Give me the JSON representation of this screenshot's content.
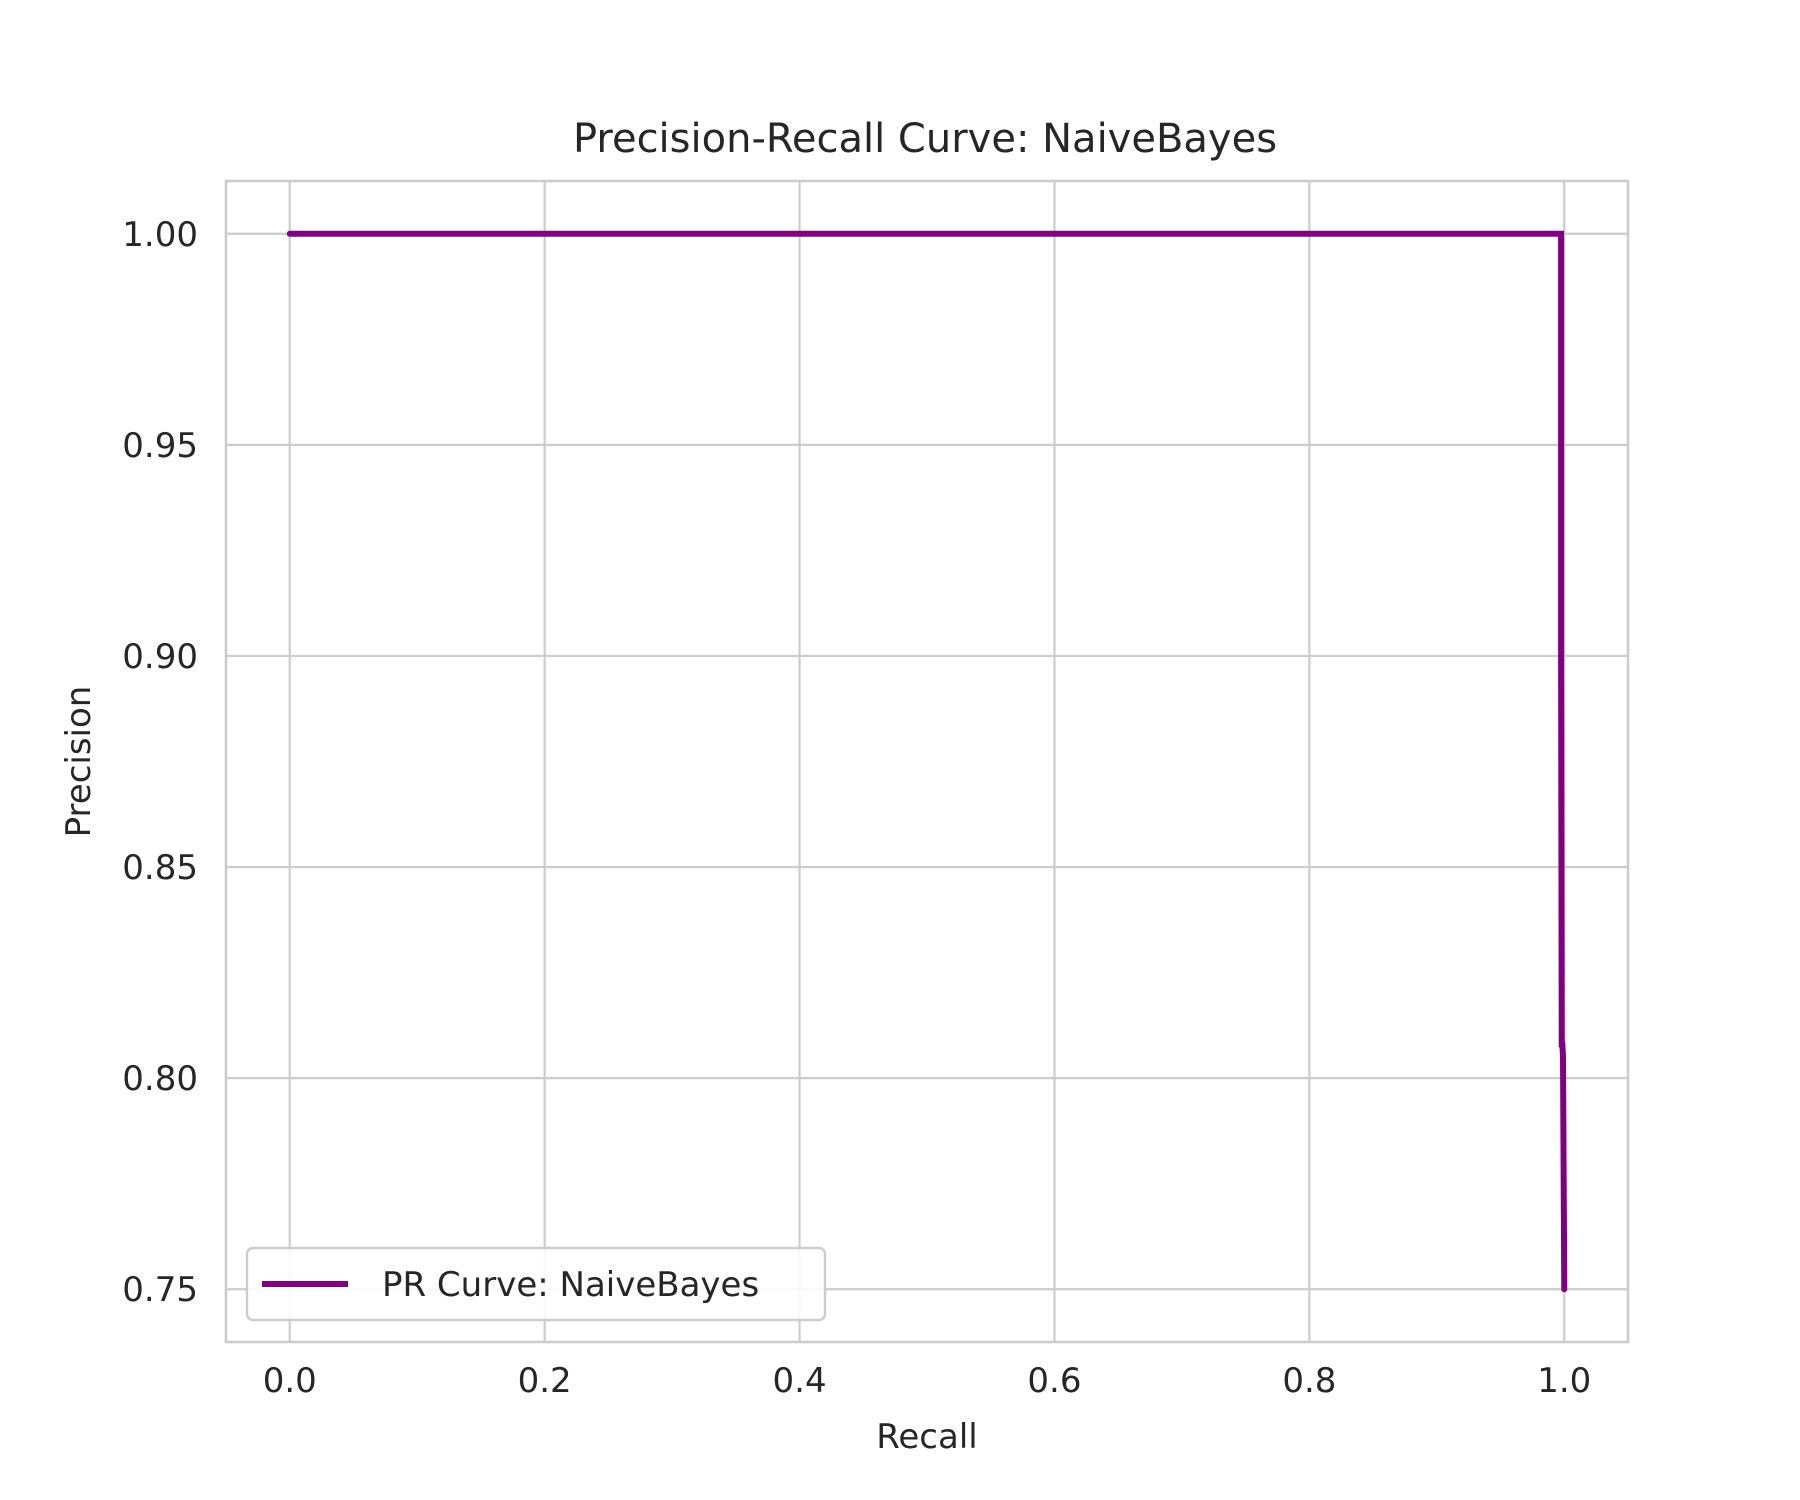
{
  "chart_data": {
    "type": "line",
    "title": "Precision-Recall Curve: NaiveBayes",
    "xlabel": "Recall",
    "ylabel": "Precision",
    "xlim": [
      -0.05,
      1.05
    ],
    "ylim": [
      0.7375,
      1.0125
    ],
    "xticks": [
      0.0,
      0.2,
      0.4,
      0.6,
      0.8,
      1.0
    ],
    "xtick_labels": [
      "0.0",
      "0.2",
      "0.4",
      "0.6",
      "0.8",
      "1.0"
    ],
    "yticks": [
      0.75,
      0.8,
      0.85,
      0.9,
      0.95,
      1.0
    ],
    "ytick_labels": [
      "0.75",
      "0.80",
      "0.85",
      "0.90",
      "0.95",
      "1.00"
    ],
    "grid": true,
    "legend": {
      "position": "lower-left"
    },
    "series": [
      {
        "name": "PR Curve: NaiveBayes",
        "color": "#800080",
        "x": [
          0.0,
          0.9975,
          0.9975,
          0.998,
          0.9985,
          0.999,
          1.0
        ],
        "y": [
          1.0,
          1.0,
          0.9,
          0.808,
          0.808,
          0.805,
          0.75
        ]
      }
    ]
  }
}
